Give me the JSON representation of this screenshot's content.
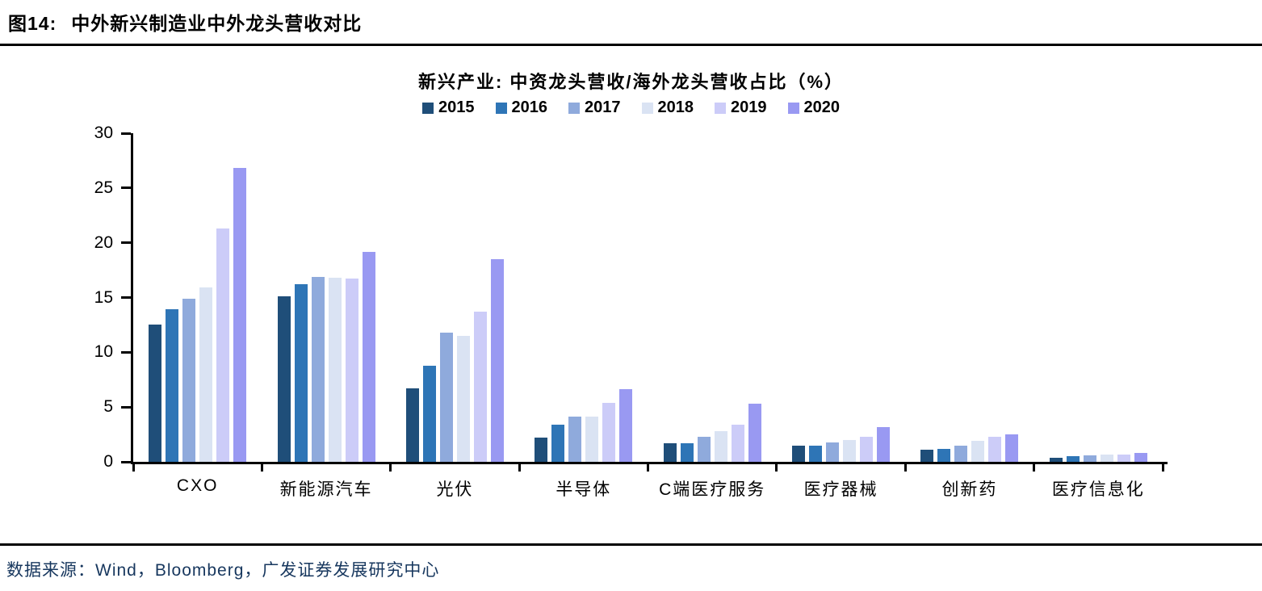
{
  "header": {
    "label": "图14:",
    "title": "中外新兴制造业中外龙头营收对比"
  },
  "source": "数据来源：Wind，Bloomberg，广发证券发展研究中心",
  "chart_data": {
    "type": "bar",
    "title": "新兴产业: 中资龙头营收/海外龙头营收占比（%）",
    "xlabel": "",
    "ylabel": "",
    "ylim": [
      0,
      30
    ],
    "ytick_step": 5,
    "grid": false,
    "legend_position": "top",
    "categories": [
      "CXO",
      "新能源汽车",
      "光伏",
      "半导体",
      "C端医疗服务",
      "医疗器械",
      "创新药",
      "医疗信息化"
    ],
    "series": [
      {
        "name": "2015",
        "color": "#1F4E79",
        "values": [
          12.5,
          15.1,
          6.7,
          2.2,
          1.7,
          1.5,
          1.1,
          0.4
        ]
      },
      {
        "name": "2016",
        "color": "#2E75B6",
        "values": [
          13.9,
          16.2,
          8.8,
          3.4,
          1.7,
          1.5,
          1.2,
          0.5
        ]
      },
      {
        "name": "2017",
        "color": "#8FAADC",
        "values": [
          14.9,
          16.9,
          11.8,
          4.1,
          2.3,
          1.8,
          1.5,
          0.6
        ]
      },
      {
        "name": "2018",
        "color": "#DAE3F3",
        "values": [
          15.9,
          16.8,
          11.5,
          4.1,
          2.8,
          2.0,
          1.9,
          0.7
        ]
      },
      {
        "name": "2019",
        "color": "#CCCCF8",
        "values": [
          21.3,
          16.7,
          13.7,
          5.4,
          3.4,
          2.3,
          2.3,
          0.7
        ]
      },
      {
        "name": "2020",
        "color": "#9999F2",
        "values": [
          26.8,
          19.2,
          18.5,
          6.6,
          5.3,
          3.2,
          2.5,
          0.8
        ]
      }
    ]
  }
}
